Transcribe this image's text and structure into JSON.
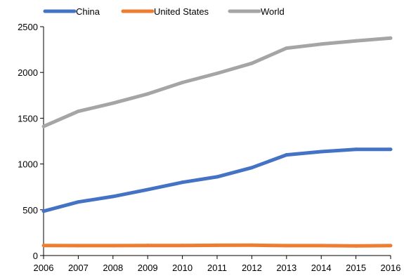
{
  "chart_data": {
    "type": "line",
    "title": "",
    "xlabel": "",
    "ylabel": "",
    "x": [
      "2006",
      "2007",
      "2008",
      "2009",
      "2010",
      "2011",
      "2012",
      "2013",
      "2014",
      "2015",
      "2016"
    ],
    "series": [
      {
        "name": "China",
        "color": "#4472c4",
        "values": [
          485,
          585,
          645,
          720,
          800,
          860,
          960,
          1100,
          1135,
          1160,
          1160
        ]
      },
      {
        "name": "United States",
        "color": "#ed7d31",
        "values": [
          110,
          108,
          108,
          110,
          110,
          112,
          113,
          108,
          108,
          105,
          108
        ]
      },
      {
        "name": "World",
        "color": "#a5a5a5",
        "values": [
          1410,
          1575,
          1665,
          1765,
          1890,
          1990,
          2100,
          2265,
          2310,
          2345,
          2375
        ]
      }
    ],
    "ylim": [
      0,
      2500
    ],
    "yticks": [
      0,
      500,
      1000,
      1500,
      2000,
      2500
    ],
    "grid": false,
    "legend_position": "top-left"
  }
}
